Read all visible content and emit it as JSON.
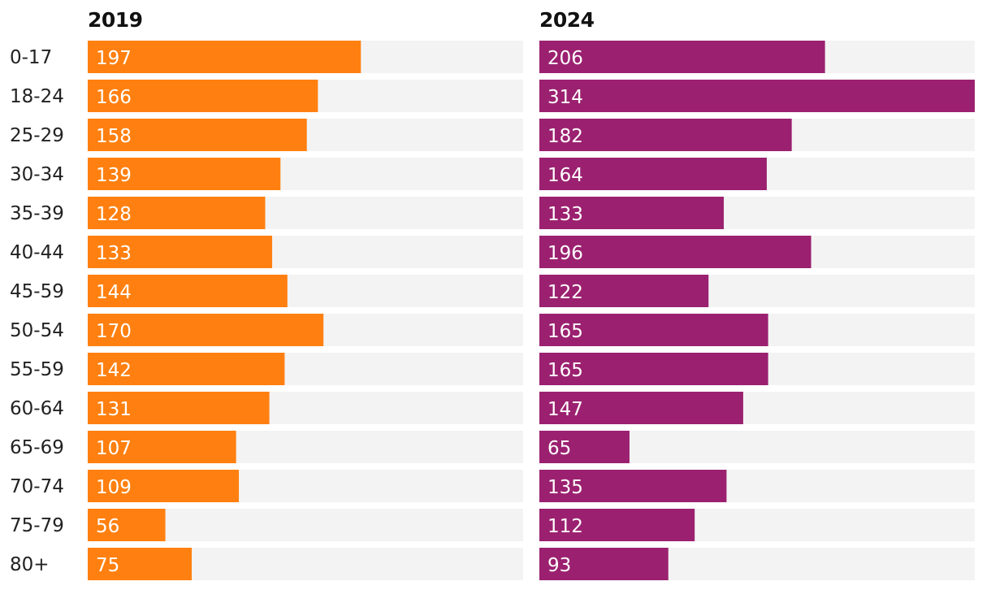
{
  "chart_data": {
    "type": "bar",
    "orientation": "horizontal",
    "categories": [
      "0-17",
      "18-24",
      "25-29",
      "30-34",
      "35-39",
      "40-44",
      "45-59",
      "50-54",
      "55-59",
      "60-64",
      "65-69",
      "70-74",
      "75-79",
      "80+"
    ],
    "series": [
      {
        "name": "2019",
        "color": "#ff8010",
        "values": [
          197,
          166,
          158,
          139,
          128,
          133,
          144,
          170,
          142,
          131,
          107,
          109,
          56,
          75
        ]
      },
      {
        "name": "2024",
        "color": "#9b2170",
        "values": [
          206,
          314,
          182,
          164,
          133,
          196,
          122,
          165,
          165,
          147,
          65,
          135,
          112,
          93
        ]
      }
    ],
    "xlim": [
      0,
      314
    ],
    "track_color": "#f3f3f3",
    "grid": false,
    "legend": "none"
  }
}
